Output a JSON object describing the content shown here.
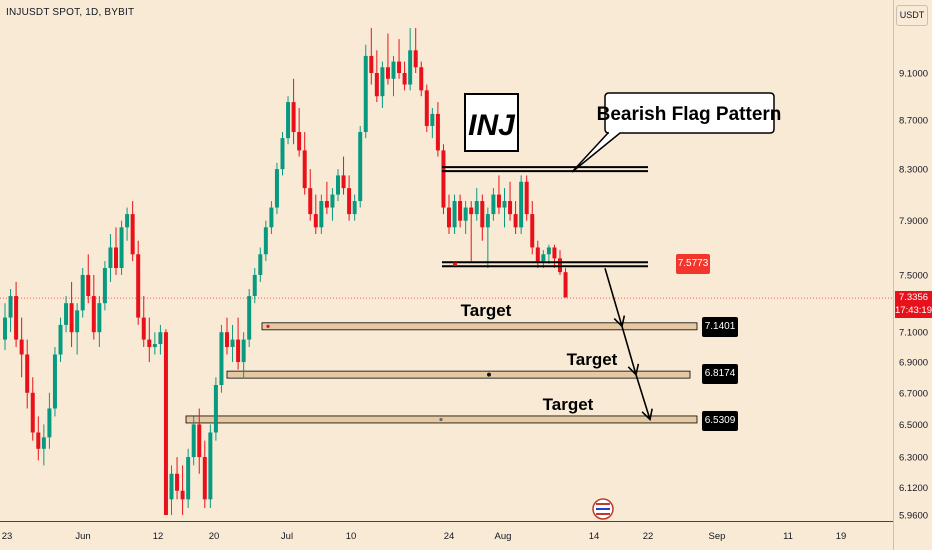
{
  "header": {
    "symbol_line": "INJUSDT SPOT, 1D, BYBIT"
  },
  "price_axis": {
    "currency": "USDT",
    "ticks": [
      "9.1000",
      "8.7000",
      "8.3000",
      "7.9000",
      "7.5000",
      "7.1000",
      "6.9000",
      "6.7000",
      "6.5000",
      "6.3000",
      "6.1200",
      "5.9600"
    ],
    "tick_values": [
      9.1,
      8.7,
      8.3,
      7.9,
      7.5,
      7.1,
      6.9,
      6.7,
      6.5,
      6.3,
      6.12,
      5.96
    ],
    "current_price": "7.3356",
    "countdown": "17:43:19"
  },
  "time_axis": {
    "labels": [
      "23",
      "Jun",
      "12",
      "20",
      "Jul",
      "10",
      "24",
      "Aug",
      "14",
      "22",
      "Sep",
      "11",
      "19"
    ]
  },
  "annotations": {
    "ticker_box": "INJ",
    "callout": "Bearish Flag Pattern",
    "breakdown_label": "7.5773",
    "targets": [
      {
        "label": "Target",
        "price": "7.1401"
      },
      {
        "label": "Target",
        "price": "6.8174"
      },
      {
        "label": "Target",
        "price": "6.5309"
      }
    ]
  },
  "colors": {
    "up": "#089981",
    "down": "#e8111b",
    "background": "#f9ead5",
    "target_zone": "#e6c9a3",
    "label_bg": "#000000",
    "breakdown_bg": "#f2362c",
    "current_price_bg": "#e8111b"
  },
  "chart_data": {
    "type": "candlestick",
    "title": "",
    "xlabel": "",
    "ylabel": "",
    "ylim": [
      5.96,
      9.2
    ],
    "y_scale": "log",
    "candles_ohlc": [
      [
        7.05,
        7.3,
        6.98,
        7.2
      ],
      [
        7.2,
        7.4,
        7.1,
        7.35
      ],
      [
        7.35,
        7.45,
        7.0,
        7.05
      ],
      [
        7.05,
        7.2,
        6.8,
        6.95
      ],
      [
        6.95,
        7.05,
        6.6,
        6.7
      ],
      [
        6.7,
        6.8,
        6.4,
        6.45
      ],
      [
        6.45,
        6.55,
        6.28,
        6.35
      ],
      [
        6.35,
        6.5,
        6.25,
        6.42
      ],
      [
        6.42,
        6.7,
        6.35,
        6.6
      ],
      [
        6.6,
        7.0,
        6.55,
        6.95
      ],
      [
        6.95,
        7.2,
        6.9,
        7.15
      ],
      [
        7.15,
        7.35,
        7.1,
        7.3
      ],
      [
        7.3,
        7.45,
        7.0,
        7.1
      ],
      [
        7.1,
        7.3,
        6.95,
        7.25
      ],
      [
        7.25,
        7.55,
        7.2,
        7.5
      ],
      [
        7.5,
        7.65,
        7.3,
        7.35
      ],
      [
        7.35,
        7.5,
        7.05,
        7.1
      ],
      [
        7.1,
        7.35,
        7.0,
        7.3
      ],
      [
        7.3,
        7.6,
        7.25,
        7.55
      ],
      [
        7.55,
        7.8,
        7.45,
        7.7
      ],
      [
        7.7,
        7.85,
        7.5,
        7.55
      ],
      [
        7.55,
        7.9,
        7.5,
        7.85
      ],
      [
        7.85,
        8.0,
        7.75,
        7.95
      ],
      [
        7.95,
        8.05,
        7.6,
        7.65
      ],
      [
        7.65,
        7.75,
        7.15,
        7.2
      ],
      [
        7.2,
        7.35,
        7.0,
        7.05
      ],
      [
        7.05,
        7.2,
        6.9,
        7.0
      ],
      [
        7.0,
        7.1,
        6.95,
        7.02
      ],
      [
        7.02,
        7.15,
        6.95,
        7.1
      ],
      [
        7.1,
        7.12,
        5.96,
        5.96
      ],
      [
        6.05,
        6.25,
        5.96,
        6.2
      ],
      [
        6.2,
        6.3,
        6.05,
        6.1
      ],
      [
        6.1,
        6.25,
        5.96,
        6.05
      ],
      [
        6.05,
        6.35,
        6.0,
        6.3
      ],
      [
        6.3,
        6.55,
        6.25,
        6.5
      ],
      [
        6.5,
        6.6,
        6.2,
        6.3
      ],
      [
        6.3,
        6.4,
        6.0,
        6.05
      ],
      [
        6.05,
        6.5,
        6.0,
        6.45
      ],
      [
        6.45,
        6.8,
        6.4,
        6.75
      ],
      [
        6.75,
        7.15,
        6.7,
        7.1
      ],
      [
        7.1,
        7.2,
        6.95,
        7.0
      ],
      [
        7.0,
        7.15,
        6.9,
        7.05
      ],
      [
        7.05,
        7.2,
        6.85,
        6.9
      ],
      [
        6.9,
        7.1,
        6.8,
        7.05
      ],
      [
        7.05,
        7.4,
        7.0,
        7.35
      ],
      [
        7.35,
        7.55,
        7.3,
        7.5
      ],
      [
        7.5,
        7.7,
        7.45,
        7.65
      ],
      [
        7.65,
        7.9,
        7.6,
        7.85
      ],
      [
        7.85,
        8.05,
        7.8,
        8.0
      ],
      [
        8.0,
        8.35,
        7.95,
        8.3
      ],
      [
        8.3,
        8.6,
        8.25,
        8.55
      ],
      [
        8.55,
        8.9,
        8.5,
        8.85
      ],
      [
        8.85,
        9.05,
        8.5,
        8.6
      ],
      [
        8.6,
        8.8,
        8.4,
        8.45
      ],
      [
        8.45,
        8.6,
        8.1,
        8.15
      ],
      [
        8.15,
        8.3,
        7.9,
        7.95
      ],
      [
        7.95,
        8.1,
        7.8,
        7.85
      ],
      [
        7.85,
        8.1,
        7.8,
        8.05
      ],
      [
        8.05,
        8.2,
        7.95,
        8.0
      ],
      [
        8.0,
        8.15,
        7.9,
        8.1
      ],
      [
        8.1,
        8.3,
        8.05,
        8.25
      ],
      [
        8.25,
        8.4,
        8.1,
        8.15
      ],
      [
        8.15,
        8.25,
        7.9,
        7.95
      ],
      [
        7.95,
        8.1,
        7.9,
        8.05
      ],
      [
        8.05,
        8.65,
        8.0,
        8.6
      ],
      [
        8.6,
        9.35,
        8.55,
        9.25
      ],
      [
        9.25,
        9.5,
        9.0,
        9.1
      ],
      [
        9.1,
        9.3,
        8.85,
        8.9
      ],
      [
        8.9,
        9.2,
        8.8,
        9.15
      ],
      [
        9.15,
        9.45,
        9.0,
        9.05
      ],
      [
        9.05,
        9.25,
        8.9,
        9.2
      ],
      [
        9.2,
        9.4,
        9.05,
        9.1
      ],
      [
        9.1,
        9.2,
        8.95,
        9.0
      ],
      [
        9.0,
        9.5,
        8.95,
        9.3
      ],
      [
        9.3,
        9.5,
        9.1,
        9.15
      ],
      [
        9.15,
        9.2,
        8.9,
        8.95
      ],
      [
        8.95,
        9.0,
        8.6,
        8.65
      ],
      [
        8.65,
        8.8,
        8.55,
        8.75
      ],
      [
        8.75,
        8.85,
        8.4,
        8.45
      ],
      [
        8.45,
        8.5,
        7.95,
        8.0
      ],
      [
        8.0,
        8.1,
        7.8,
        7.85
      ],
      [
        7.85,
        8.1,
        7.8,
        8.05
      ],
      [
        8.05,
        8.1,
        7.85,
        7.9
      ],
      [
        7.9,
        8.05,
        7.8,
        8.0
      ],
      [
        8.0,
        8.05,
        7.6,
        7.95
      ],
      [
        7.95,
        8.15,
        7.9,
        8.05
      ],
      [
        8.05,
        8.1,
        7.75,
        7.85
      ],
      [
        7.85,
        8.0,
        7.55,
        7.95
      ],
      [
        7.95,
        8.15,
        7.9,
        8.1
      ],
      [
        8.1,
        8.25,
        7.95,
        8.0
      ],
      [
        8.0,
        8.15,
        7.85,
        8.05
      ],
      [
        8.05,
        8.2,
        7.9,
        7.95
      ],
      [
        7.95,
        8.05,
        7.8,
        7.85
      ],
      [
        7.85,
        8.25,
        7.8,
        8.2
      ],
      [
        8.2,
        8.25,
        7.9,
        7.95
      ],
      [
        7.95,
        8.05,
        7.65,
        7.7
      ],
      [
        7.7,
        7.75,
        7.55,
        7.6
      ],
      [
        7.6,
        7.68,
        7.55,
        7.65
      ],
      [
        7.65,
        7.72,
        7.58,
        7.7
      ],
      [
        7.7,
        7.72,
        7.55,
        7.62
      ],
      [
        7.62,
        7.68,
        7.5,
        7.52
      ],
      [
        7.52,
        7.55,
        7.34,
        7.34
      ]
    ],
    "levels": [
      {
        "name": "Flag upper",
        "value": 8.3
      },
      {
        "name": "Flag lower",
        "value": 7.5773
      },
      {
        "name": "Target 1",
        "value": 7.1401
      },
      {
        "name": "Target 2",
        "value": 6.8174
      },
      {
        "name": "Target 3",
        "value": 6.5309
      }
    ],
    "projection_path": [
      7.5773,
      7.1401,
      6.8174,
      6.5309
    ]
  }
}
